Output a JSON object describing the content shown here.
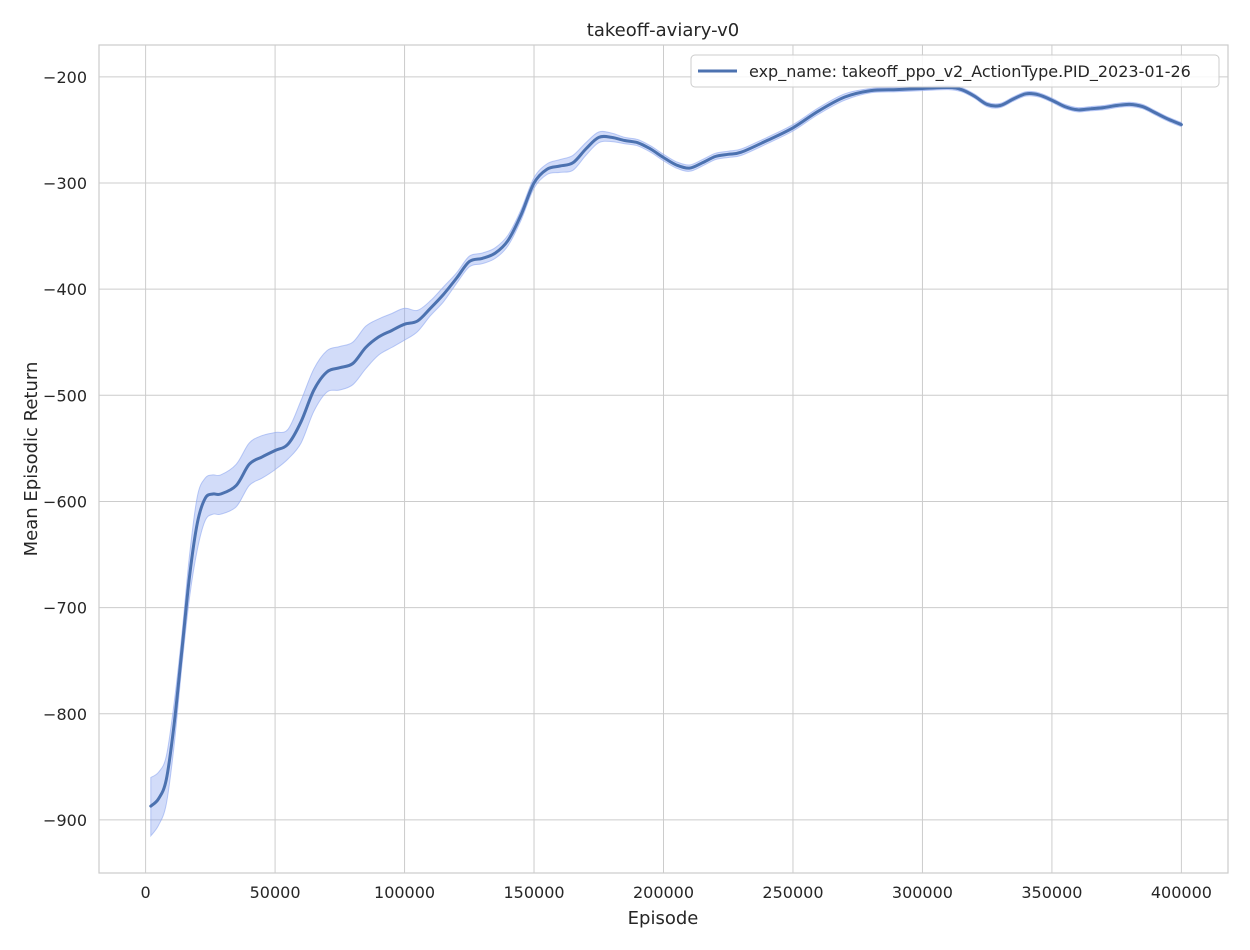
{
  "chart_data": {
    "type": "line",
    "title": "takeoff-aviary-v0",
    "xlabel": "Episode",
    "ylabel": "Mean Episodic Return",
    "xlim": [
      -18000,
      418000
    ],
    "ylim": [
      -950,
      -170
    ],
    "xticks": [
      0,
      50000,
      100000,
      150000,
      200000,
      250000,
      300000,
      350000,
      400000
    ],
    "yticks": [
      -900,
      -800,
      -700,
      -600,
      -500,
      -400,
      -300,
      -200
    ],
    "grid": true,
    "legend_position": "top-right",
    "series": [
      {
        "name": "exp_name: takeoff_ppo_v2_ActionType.PID_2023-01-26",
        "color": "#4c72b0",
        "band_color": "#8fa8f0",
        "x": [
          2000,
          5000,
          8000,
          11000,
          14000,
          17000,
          20000,
          23000,
          26000,
          29000,
          35000,
          40000,
          45000,
          50000,
          55000,
          60000,
          65000,
          70000,
          75000,
          80000,
          85000,
          90000,
          95000,
          100000,
          105000,
          110000,
          115000,
          120000,
          125000,
          130000,
          135000,
          140000,
          145000,
          150000,
          155000,
          160000,
          165000,
          170000,
          175000,
          180000,
          185000,
          190000,
          195000,
          200000,
          205000,
          210000,
          215000,
          220000,
          225000,
          230000,
          240000,
          250000,
          260000,
          270000,
          280000,
          290000,
          300000,
          310000,
          315000,
          320000,
          325000,
          330000,
          335000,
          340000,
          345000,
          350000,
          355000,
          360000,
          365000,
          370000,
          375000,
          380000,
          385000,
          390000,
          395000,
          400000
        ],
        "y": [
          -887,
          -880,
          -862,
          -810,
          -740,
          -670,
          -620,
          -597,
          -593,
          -593,
          -585,
          -565,
          -558,
          -552,
          -546,
          -525,
          -495,
          -478,
          -474,
          -470,
          -455,
          -445,
          -439,
          -433,
          -430,
          -418,
          -405,
          -390,
          -374,
          -371,
          -366,
          -354,
          -330,
          -300,
          -287,
          -284,
          -281,
          -268,
          -257,
          -257,
          -260,
          -262,
          -268,
          -276,
          -283,
          -286,
          -281,
          -275,
          -273,
          -271,
          -260,
          -248,
          -232,
          -219,
          -213,
          -212,
          -211,
          -210,
          -212,
          -218,
          -226,
          -227,
          -221,
          -216,
          -217,
          -222,
          -228,
          -231,
          -230,
          -229,
          -227,
          -226,
          -228,
          -234,
          -240,
          -245
        ],
        "lower": [
          -915,
          -905,
          -885,
          -830,
          -755,
          -690,
          -645,
          -618,
          -612,
          -612,
          -605,
          -585,
          -578,
          -570,
          -560,
          -545,
          -515,
          -497,
          -495,
          -490,
          -475,
          -462,
          -455,
          -448,
          -440,
          -425,
          -412,
          -395,
          -379,
          -376,
          -371,
          -359,
          -335,
          -305,
          -292,
          -290,
          -288,
          -274,
          -262,
          -261,
          -263,
          -265,
          -271,
          -279,
          -286,
          -289,
          -284,
          -278,
          -276,
          -274,
          -263,
          -251,
          -235,
          -222,
          -215,
          -214,
          -213,
          -212,
          -214,
          -220,
          -228,
          -229,
          -223,
          -218,
          -219,
          -224,
          -230,
          -233,
          -232,
          -231,
          -229,
          -228,
          -230,
          -236,
          -242,
          -247
        ],
        "upper": [
          -860,
          -855,
          -840,
          -790,
          -725,
          -650,
          -595,
          -578,
          -575,
          -575,
          -565,
          -545,
          -538,
          -535,
          -532,
          -505,
          -475,
          -458,
          -454,
          -450,
          -435,
          -428,
          -423,
          -418,
          -420,
          -411,
          -398,
          -385,
          -369,
          -366,
          -361,
          -349,
          -325,
          -295,
          -282,
          -278,
          -274,
          -262,
          -252,
          -253,
          -257,
          -259,
          -265,
          -273,
          -280,
          -283,
          -278,
          -272,
          -270,
          -268,
          -257,
          -245,
          -229,
          -216,
          -211,
          -210,
          -209,
          -208,
          -210,
          -216,
          -224,
          -225,
          -219,
          -214,
          -215,
          -220,
          -226,
          -229,
          -228,
          -227,
          -225,
          -224,
          -226,
          -232,
          -238,
          -243
        ]
      }
    ]
  }
}
